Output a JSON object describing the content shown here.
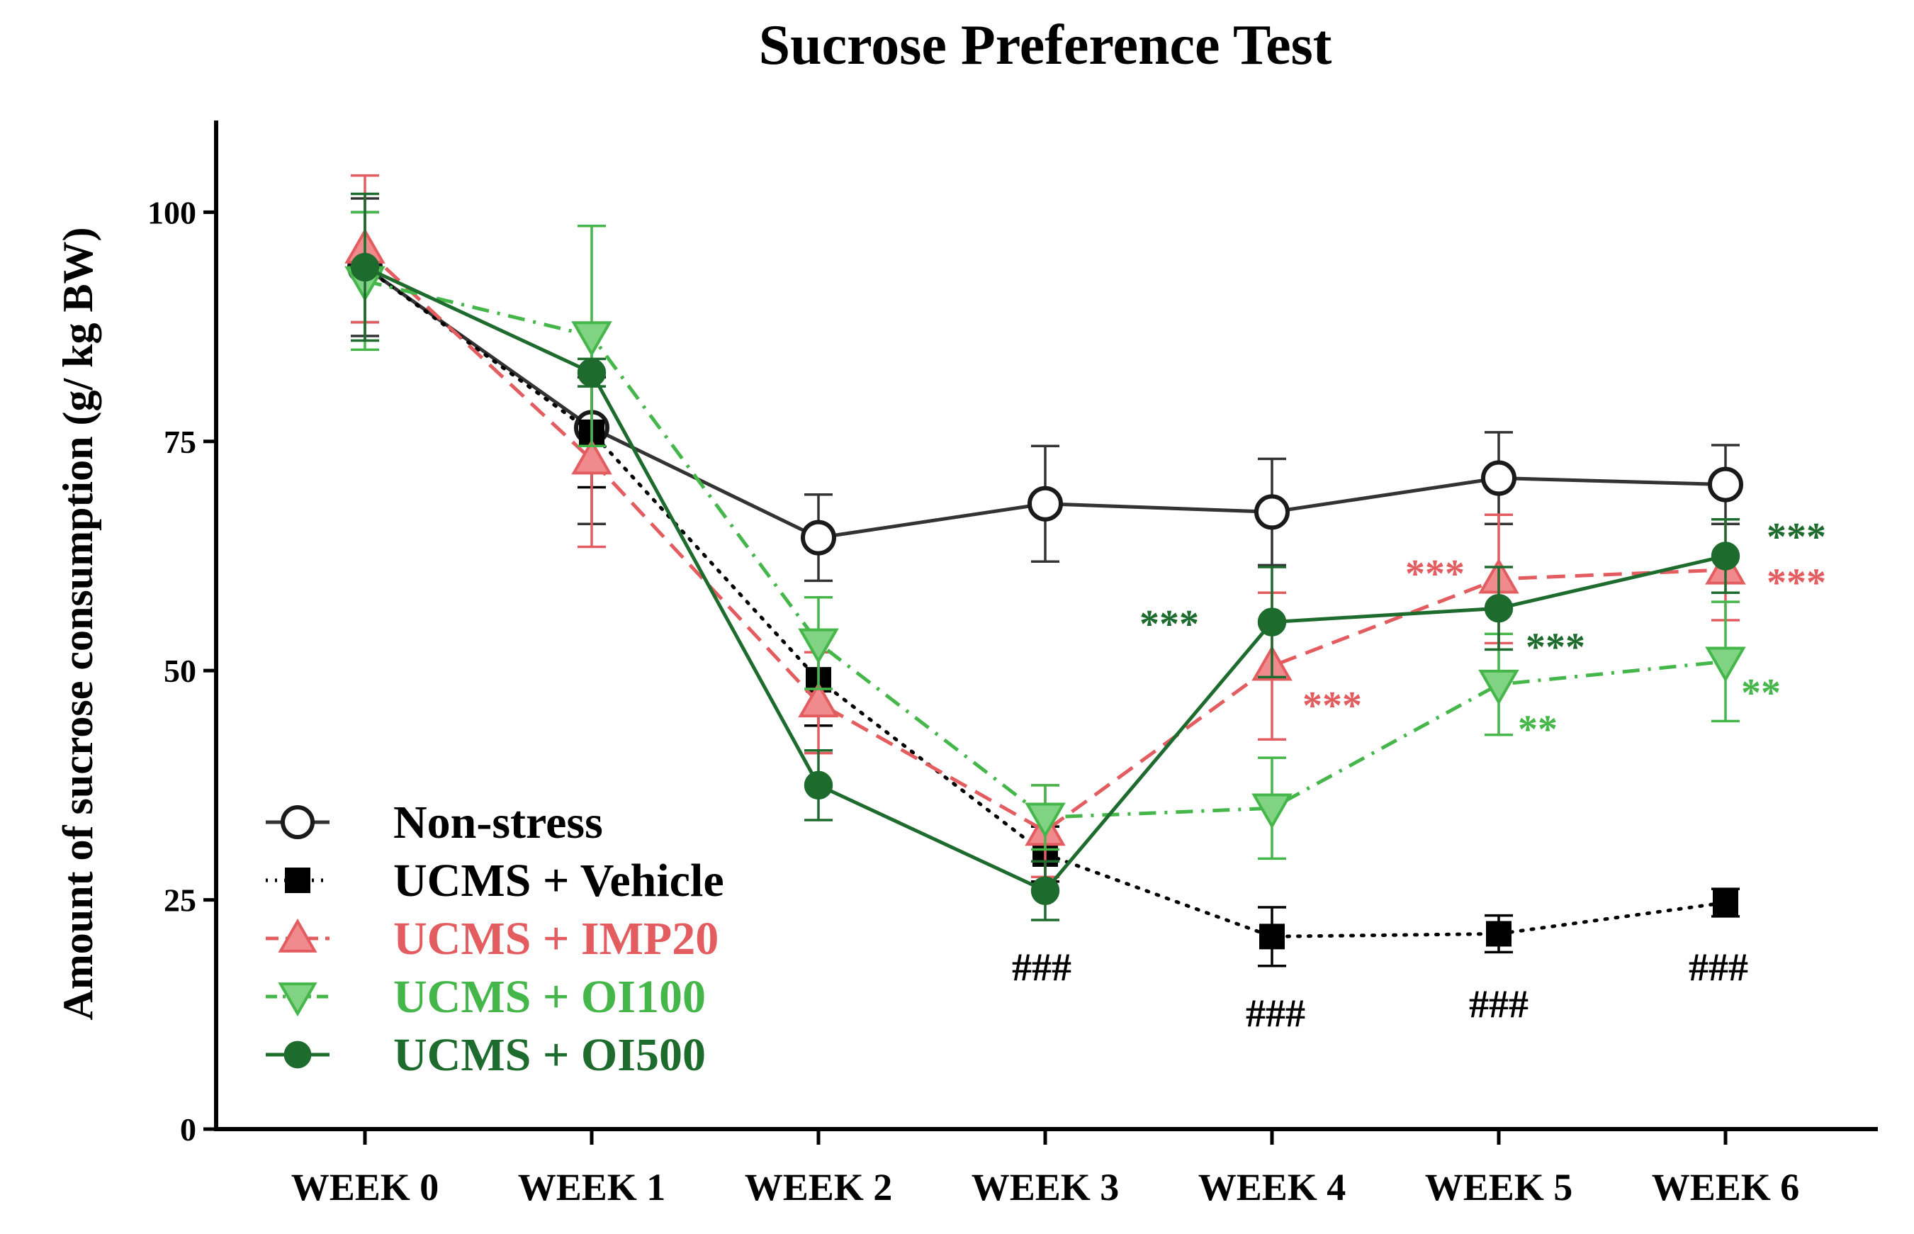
{
  "chart_data": {
    "type": "line",
    "title": "Sucrose Preference Test",
    "xlabel": "",
    "ylabel": "Amount of sucrose consumption (g/ kg  BW)",
    "categories": [
      "WEEK 0",
      "WEEK 1",
      "WEEK 2",
      "WEEK 3",
      "WEEK 4",
      "WEEK 5",
      "WEEK 6"
    ],
    "yticks": [
      "0",
      "25",
      "50",
      "75",
      "100"
    ],
    "ylim": [
      0,
      110
    ],
    "grid": false,
    "legend_position": "bottom-left",
    "series": [
      {
        "name": "Non-stress",
        "color": "#333333",
        "marker": "circle-open",
        "dash": "solid",
        "values": [
          94,
          76.5,
          64.5,
          68.2,
          67.3,
          71,
          70.3
        ],
        "errors": [
          7.5,
          10.5,
          4.7,
          6.3,
          5.8,
          5,
          4.3
        ]
      },
      {
        "name": "UCMS + Vehicle",
        "color": "#000000",
        "marker": "square",
        "dash": "dotted",
        "values": [
          94,
          76,
          49,
          30,
          21,
          21.3,
          24.7
        ],
        "errors": [
          6,
          6,
          5,
          3,
          3.2,
          2,
          1.5
        ]
      },
      {
        "name": "UCMS + IMP20",
        "color": "#e35d60",
        "marker": "triangle-up",
        "dash": "dashed",
        "values": [
          96,
          73,
          46.5,
          32.5,
          50.5,
          60,
          61
        ],
        "errors": [
          8,
          9.5,
          5.5,
          5,
          8,
          7,
          5.5
        ]
      },
      {
        "name": "UCMS + OI100",
        "color": "#45b64a",
        "marker": "triangle-down",
        "dash": "dash-dot",
        "values": [
          92.5,
          86.5,
          53,
          34,
          35,
          48.5,
          51
        ],
        "errors": [
          7.5,
          12,
          5,
          3.5,
          5.5,
          5.5,
          6.5
        ]
      },
      {
        "name": "UCMS + OI500",
        "color": "#1e6b2e",
        "marker": "circle-filled",
        "dash": "solid",
        "values": [
          94,
          82.5,
          37.5,
          26,
          55.3,
          56.8,
          62.5
        ],
        "errors": [
          8,
          1.5,
          3.8,
          3.2,
          6,
          4.5,
          4
        ]
      }
    ],
    "annotations": [
      {
        "text": "###",
        "color": "#000000",
        "x": "WEEK 3",
        "y": 18.5
      },
      {
        "text": "###",
        "color": "#000000",
        "x": "WEEK 4",
        "y": 13.5
      },
      {
        "text": "###",
        "color": "#000000",
        "x": "WEEK 5",
        "y": 14.5
      },
      {
        "text": "###",
        "color": "#000000",
        "x": "WEEK 6",
        "y": 18.5
      },
      {
        "text": "***",
        "color": "#1e6b2e",
        "x": "WEEK 4",
        "y": 55.2
      },
      {
        "text": "***",
        "color": "#e35d60",
        "x": "WEEK 4",
        "y": 46.3
      },
      {
        "text": "***",
        "color": "#e35d60",
        "x": "WEEK 5",
        "y": 60.7
      },
      {
        "text": "***",
        "color": "#1e6b2e",
        "x": "WEEK 5",
        "y": 52.7
      },
      {
        "text": "**",
        "color": "#45b64a",
        "x": "WEEK 5",
        "y": 43.7
      },
      {
        "text": "***",
        "color": "#1e6b2e",
        "x": "WEEK 6",
        "y": 64.7
      },
      {
        "text": "***",
        "color": "#e35d60",
        "x": "WEEK 6",
        "y": 59.7
      },
      {
        "text": "**",
        "color": "#45b64a",
        "x": "WEEK 6",
        "y": 47.7
      }
    ]
  }
}
